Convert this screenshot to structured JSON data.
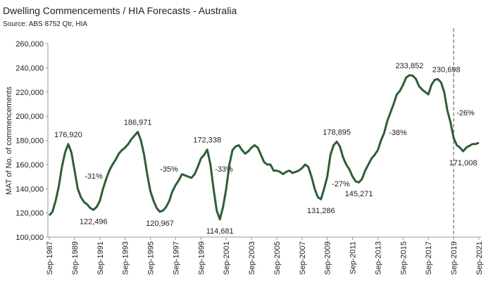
{
  "chart_data": {
    "type": "line",
    "title": "Dwelling Commencements / HIA Forecasts - Australia",
    "subtitle": "Source: ABS 8752 Qtr, HIA",
    "ylabel": "MAT of No. of commencements",
    "color": "#2d5e36",
    "categories": [
      "Sep-1987",
      null,
      null,
      null,
      null,
      null,
      null,
      null,
      "Sep-1989",
      null,
      null,
      null,
      null,
      null,
      null,
      null,
      "Sep-1991",
      null,
      null,
      null,
      null,
      null,
      null,
      null,
      "Sep-1993",
      null,
      null,
      null,
      null,
      null,
      null,
      null,
      "Sep-1995",
      null,
      null,
      null,
      null,
      null,
      null,
      null,
      "Sep-1997",
      null,
      null,
      null,
      null,
      null,
      null,
      null,
      "Sep-1999",
      null,
      null,
      null,
      null,
      null,
      null,
      null,
      "Sep-2001",
      null,
      null,
      null,
      null,
      null,
      null,
      null,
      "Sep-2003",
      null,
      null,
      null,
      null,
      null,
      null,
      null,
      "Sep-2005",
      null,
      null,
      null,
      null,
      null,
      null,
      null,
      "Sep-2007",
      null,
      null,
      null,
      null,
      null,
      null,
      null,
      "Sep-2009",
      null,
      null,
      null,
      null,
      null,
      null,
      null,
      "Sep-2011",
      null,
      null,
      null,
      null,
      null,
      null,
      null,
      "Sep-2013",
      null,
      null,
      null,
      null,
      null,
      null,
      null,
      "Sep-2015",
      null,
      null,
      null,
      null,
      null,
      null,
      null,
      "Sep-2017",
      null,
      null,
      null,
      null,
      null,
      null,
      null,
      "Sep-2019",
      null,
      null,
      null,
      null,
      null,
      null,
      null,
      "Sep-2021"
    ],
    "values": [
      118000,
      121000,
      130000,
      142000,
      158000,
      170000,
      176920,
      170000,
      155000,
      140000,
      133000,
      129000,
      127000,
      124000,
      122496,
      125000,
      130000,
      140000,
      148000,
      155000,
      160000,
      164000,
      169000,
      172000,
      174000,
      177000,
      181000,
      184000,
      186971,
      180000,
      168000,
      152000,
      138000,
      130000,
      124000,
      120967,
      122000,
      125000,
      130000,
      138000,
      143000,
      147000,
      152000,
      151000,
      150000,
      149000,
      152000,
      158000,
      165000,
      168000,
      172338,
      160000,
      140000,
      122000,
      114681,
      125000,
      140000,
      160000,
      172000,
      175000,
      176000,
      172000,
      169000,
      171000,
      174000,
      176000,
      174000,
      168000,
      162000,
      160000,
      160000,
      155000,
      155000,
      154000,
      152000,
      154000,
      155000,
      153000,
      154000,
      155000,
      157000,
      160000,
      158000,
      150000,
      140000,
      133000,
      131286,
      140000,
      150000,
      168000,
      176000,
      178895,
      175000,
      166000,
      160000,
      156000,
      150000,
      146000,
      145271,
      148000,
      155000,
      160000,
      165000,
      168000,
      172000,
      180000,
      186000,
      196000,
      203000,
      210000,
      218000,
      221000,
      226000,
      232000,
      233852,
      233500,
      231000,
      225000,
      222000,
      220000,
      218000,
      226000,
      230000,
      230698,
      228000,
      220000,
      205000,
      195000,
      182000,
      176000,
      174000,
      171008,
      174000,
      175500,
      177000,
      177000,
      178000
    ],
    "value_labels": [
      null,
      null,
      null,
      null,
      null,
      null,
      "176,920",
      null,
      null,
      null,
      null,
      null,
      null,
      null,
      "122,496",
      null,
      null,
      null,
      null,
      null,
      null,
      null,
      null,
      null,
      null,
      null,
      null,
      null,
      "186,971",
      null,
      null,
      null,
      null,
      null,
      null,
      "120,967",
      null,
      null,
      null,
      null,
      null,
      null,
      null,
      null,
      null,
      null,
      null,
      null,
      null,
      null,
      "172,338",
      null,
      null,
      null,
      "114,681",
      null,
      null,
      null,
      null,
      null,
      null,
      null,
      null,
      null,
      null,
      null,
      null,
      null,
      null,
      null,
      null,
      null,
      null,
      null,
      null,
      null,
      null,
      null,
      null,
      null,
      null,
      null,
      null,
      null,
      null,
      null,
      "131,286",
      null,
      null,
      null,
      null,
      "178,895",
      null,
      null,
      null,
      null,
      null,
      null,
      "145,271",
      null,
      null,
      null,
      null,
      null,
      null,
      null,
      null,
      null,
      null,
      null,
      null,
      null,
      null,
      null,
      "233,852",
      null,
      null,
      null,
      null,
      null,
      null,
      null,
      null,
      "230,698",
      null,
      null,
      null,
      null,
      null,
      null,
      null,
      "171,008",
      null,
      null,
      null,
      null,
      null
    ],
    "annotations": [
      "-31%",
      "-35%",
      "-33%",
      "-27%",
      "-38%",
      "-26%"
    ],
    "ylim": [
      100000,
      260000
    ],
    "yticks": [
      {
        "value": 100000,
        "label": "100,000"
      },
      {
        "value": 120000,
        "label": "120,000"
      },
      {
        "value": 140000,
        "label": "140,000"
      },
      {
        "value": 160000,
        "label": "160,000"
      },
      {
        "value": 180000,
        "label": "180,000"
      },
      {
        "value": 200000,
        "label": "200,000"
      },
      {
        "value": 220000,
        "label": "220,000"
      },
      {
        "value": 240000,
        "label": "240,000"
      },
      {
        "value": 260000,
        "label": "260,000"
      }
    ],
    "grid": false
  }
}
